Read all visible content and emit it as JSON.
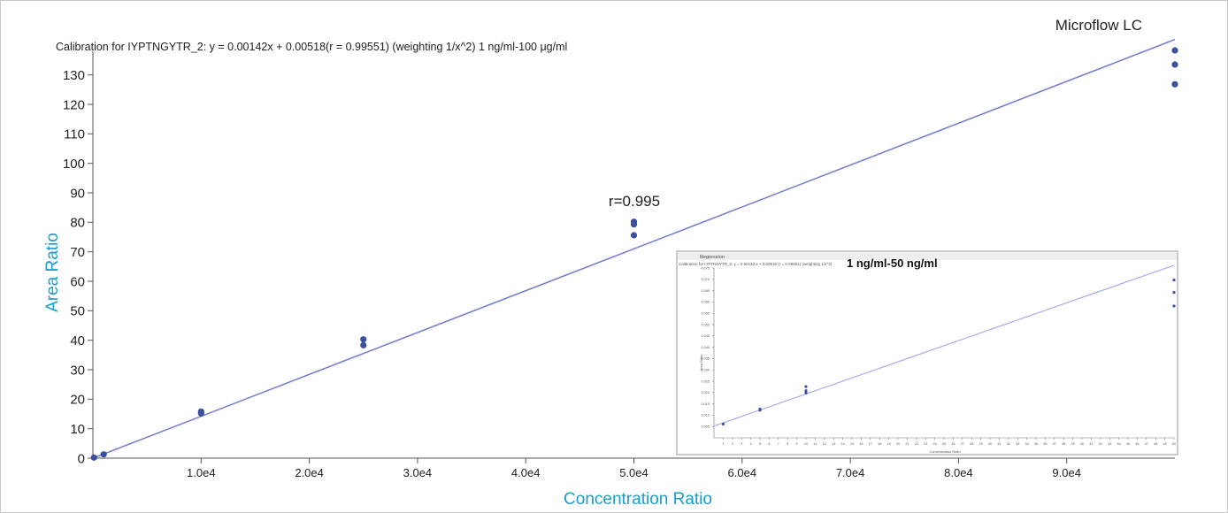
{
  "chart_data": [
    {
      "type": "scatter",
      "title": "Calibration for IYPTNGYTR_2: y = 0.00142x + 0.00518(r = 0.99551) (weighting 1/x^2) 1 ng/ml-100 μg/ml",
      "annotation_corner": "Microflow LC",
      "annotation_r": "r=0.995",
      "xlabel": "Concentration Ratio",
      "ylabel": "Area Ratio",
      "xlim": [
        0,
        100000
      ],
      "ylim": [
        0,
        138
      ],
      "x_ticks": [
        10000,
        20000,
        30000,
        40000,
        50000,
        60000,
        70000,
        80000,
        90000
      ],
      "x_tick_labels": [
        "1.0e4",
        "2.0e4",
        "3.0e4",
        "4.0e4",
        "5.0e4",
        "6.0e4",
        "7.0e4",
        "8.0e4",
        "9.0e4"
      ],
      "y_ticks": [
        0,
        10,
        20,
        30,
        40,
        50,
        60,
        70,
        80,
        90,
        100,
        110,
        120,
        130
      ],
      "y_tick_labels": [
        "0",
        "10",
        "20",
        "30",
        "40",
        "50",
        "60",
        "70",
        "80",
        "90",
        "100",
        "110",
        "120",
        "130"
      ],
      "fit_line": {
        "x": [
          0,
          100000
        ],
        "y": [
          0.00518,
          142.0
        ]
      },
      "points": [
        {
          "x": 100,
          "y": 0.2
        },
        {
          "x": 1000,
          "y": 1.3
        },
        {
          "x": 10000,
          "y": 15.2
        },
        {
          "x": 10000,
          "y": 15.8
        },
        {
          "x": 25000,
          "y": 38.3
        },
        {
          "x": 25000,
          "y": 40.3
        },
        {
          "x": 50000,
          "y": 75.6
        },
        {
          "x": 50000,
          "y": 79.3
        },
        {
          "x": 50000,
          "y": 80.2
        },
        {
          "x": 100000,
          "y": 126.8
        },
        {
          "x": 100000,
          "y": 133.5
        },
        {
          "x": 100000,
          "y": 138.3
        }
      ],
      "colors": {
        "points": "#3b50a0",
        "line": "#7a7fd0",
        "axis_label": "#1a9ec9"
      }
    },
    {
      "type": "scatter",
      "window_label": "Regression",
      "title": "Calibration for IYPTNGYTR_2: y = 0.00142 x + 0.00518 (r = 0.99551) (weighting 1/x^2)",
      "annotation": "1 ng/ml-50 ng/ml",
      "xlabel": "Concentration Ratio",
      "ylabel": "Area Ratio",
      "xlim": [
        0,
        50
      ],
      "ylim": [
        0,
        0.075
      ],
      "x_ticks": [
        1,
        2,
        3,
        4,
        5,
        6,
        7,
        8,
        9,
        10,
        11,
        12,
        13,
        14,
        15,
        16,
        17,
        18,
        19,
        20,
        21,
        22,
        23,
        24,
        25,
        26,
        27,
        28,
        29,
        30,
        31,
        32,
        33,
        34,
        35,
        36,
        37,
        38,
        39,
        40,
        41,
        42,
        43,
        44,
        45,
        46,
        47,
        48,
        49,
        50
      ],
      "x_tick_labels": [
        "1",
        "2",
        "3",
        "4",
        "5",
        "6",
        "7",
        "8",
        "9",
        "10",
        "11",
        "12",
        "13",
        "14",
        "15",
        "16",
        "17",
        "18",
        "19",
        "20",
        "21",
        "22",
        "23",
        "24",
        "25",
        "26",
        "27",
        "28",
        "29",
        "30",
        "31",
        "32",
        "33",
        "34",
        "35",
        "36",
        "37",
        "38",
        "39",
        "40",
        "41",
        "42",
        "43",
        "44",
        "45",
        "46",
        "47",
        "48",
        "49",
        "50"
      ],
      "y_ticks": [
        0.005,
        0.01,
        0.015,
        0.02,
        0.025,
        0.03,
        0.035,
        0.04,
        0.045,
        0.05,
        0.055,
        0.06,
        0.065,
        0.07,
        0.075
      ],
      "y_tick_labels": [
        "0.005",
        "0.010",
        "0.015",
        "0.020",
        "0.025",
        "0.030",
        "0.035",
        "0.040",
        "0.045",
        "0.050",
        "0.055",
        "0.060",
        "0.065",
        "0.070",
        "0.075"
      ],
      "fit_line": {
        "x": [
          0,
          50
        ],
        "y": [
          0.00518,
          0.07618
        ]
      },
      "points": [
        {
          "x": 1,
          "y": 0.0061
        },
        {
          "x": 5,
          "y": 0.0122
        },
        {
          "x": 5,
          "y": 0.0127
        },
        {
          "x": 10,
          "y": 0.0198
        },
        {
          "x": 10,
          "y": 0.0208
        },
        {
          "x": 10,
          "y": 0.0226
        },
        {
          "x": 50,
          "y": 0.0582
        },
        {
          "x": 50,
          "y": 0.0642
        },
        {
          "x": 50,
          "y": 0.0697
        }
      ]
    }
  ]
}
